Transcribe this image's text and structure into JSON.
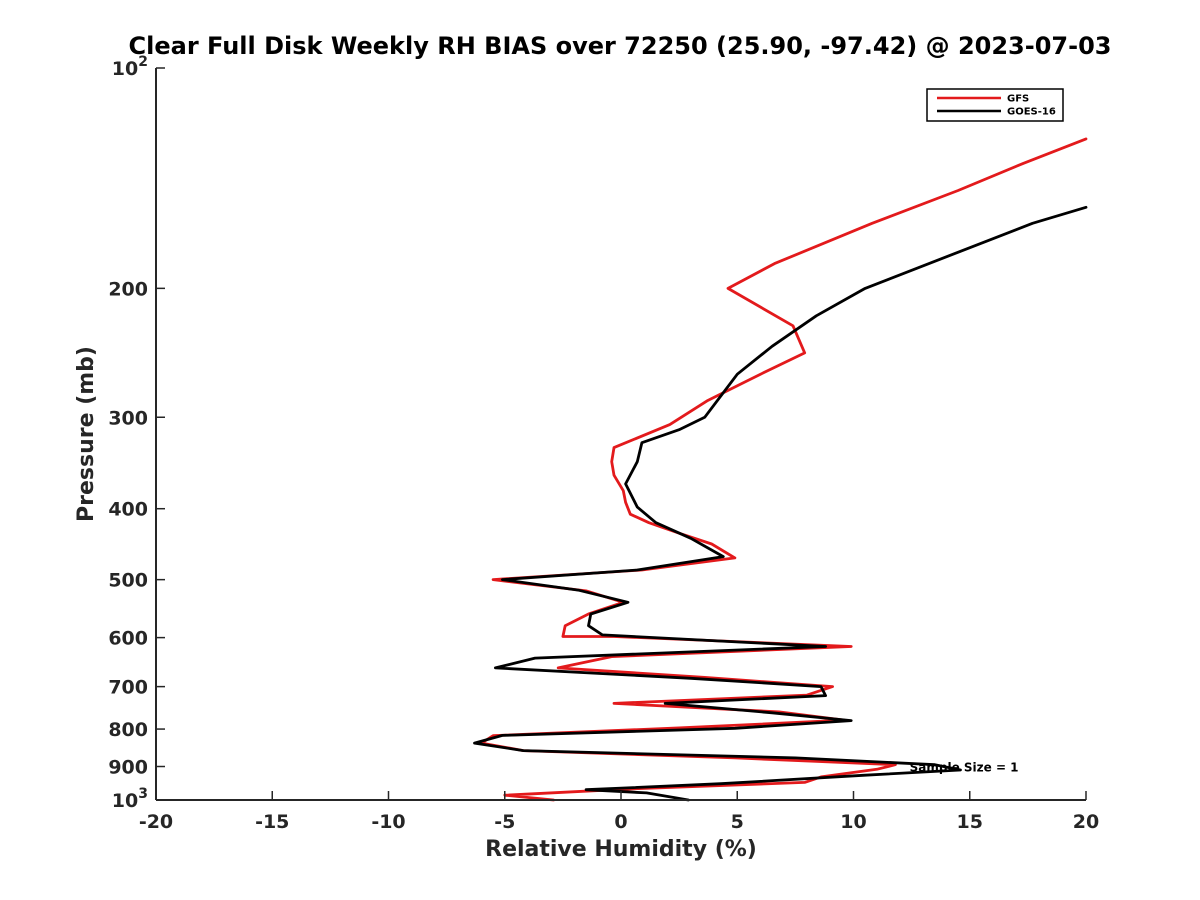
{
  "chart_data": {
    "type": "line",
    "title": "Clear Full Disk Weekly RH BIAS over 72250 (25.90, -97.42) @ 2023-07-03",
    "xlabel": "Relative Humidity (%)",
    "ylabel": "Pressure (mb)",
    "xlim": [
      -20,
      20
    ],
    "ylim": [
      1000,
      100
    ],
    "y_scale": "log",
    "y_reversed": true,
    "grid": false,
    "legend_position": "top-right",
    "x_ticks": [
      "-20",
      "-15",
      "-10",
      "-5",
      "0",
      "5",
      "10",
      "15",
      "20"
    ],
    "y_ticks": [
      {
        "value": 100,
        "base": "10",
        "exp": "2"
      },
      {
        "value": 200,
        "label": "200"
      },
      {
        "value": 300,
        "label": "300"
      },
      {
        "value": 400,
        "label": "400"
      },
      {
        "value": 500,
        "label": "500"
      },
      {
        "value": 600,
        "label": "600"
      },
      {
        "value": 700,
        "label": "700"
      },
      {
        "value": 800,
        "label": "800"
      },
      {
        "value": 900,
        "label": "900"
      },
      {
        "value": 1000,
        "base": "10",
        "exp": "3"
      }
    ],
    "series": [
      {
        "name": "GFS",
        "color": "#e31a1c",
        "points": [
          {
            "x": 20.0,
            "p": 125
          },
          {
            "x": 17.3,
            "p": 135
          },
          {
            "x": 14.5,
            "p": 147
          },
          {
            "x": 10.8,
            "p": 163
          },
          {
            "x": 6.6,
            "p": 185
          },
          {
            "x": 4.6,
            "p": 200
          },
          {
            "x": 7.4,
            "p": 225
          },
          {
            "x": 7.9,
            "p": 245
          },
          {
            "x": 6.0,
            "p": 262
          },
          {
            "x": 3.7,
            "p": 285
          },
          {
            "x": 2.1,
            "p": 307
          },
          {
            "x": -0.3,
            "p": 330
          },
          {
            "x": -0.4,
            "p": 345
          },
          {
            "x": -0.3,
            "p": 360
          },
          {
            "x": 0.1,
            "p": 378
          },
          {
            "x": 0.2,
            "p": 392
          },
          {
            "x": 0.4,
            "p": 407
          },
          {
            "x": 1.2,
            "p": 418
          },
          {
            "x": 2.5,
            "p": 432
          },
          {
            "x": 3.9,
            "p": 447
          },
          {
            "x": 4.9,
            "p": 467
          },
          {
            "x": 0.9,
            "p": 485
          },
          {
            "x": -5.5,
            "p": 500
          },
          {
            "x": -1.5,
            "p": 518
          },
          {
            "x": 0.1,
            "p": 537
          },
          {
            "x": -1.4,
            "p": 557
          },
          {
            "x": -2.4,
            "p": 578
          },
          {
            "x": -2.5,
            "p": 598
          },
          {
            "x": -0.3,
            "p": 598
          },
          {
            "x": 9.9,
            "p": 617
          },
          {
            "x": -0.4,
            "p": 637
          },
          {
            "x": -2.7,
            "p": 660
          },
          {
            "x": 3.6,
            "p": 680
          },
          {
            "x": 9.1,
            "p": 700
          },
          {
            "x": 8.0,
            "p": 719
          },
          {
            "x": -0.3,
            "p": 738
          },
          {
            "x": 6.8,
            "p": 758
          },
          {
            "x": 9.6,
            "p": 778
          },
          {
            "x": 2.5,
            "p": 797
          },
          {
            "x": -5.5,
            "p": 817
          },
          {
            "x": -6.0,
            "p": 836
          },
          {
            "x": -4.2,
            "p": 856
          },
          {
            "x": 4.9,
            "p": 876
          },
          {
            "x": 11.8,
            "p": 895
          },
          {
            "x": 11.0,
            "p": 908
          },
          {
            "x": 8.6,
            "p": 930
          },
          {
            "x": 7.9,
            "p": 946
          },
          {
            "x": 0.6,
            "p": 965
          },
          {
            "x": -5.0,
            "p": 985
          },
          {
            "x": -2.9,
            "p": 1000
          }
        ]
      },
      {
        "name": "GOES-16",
        "color": "#000000",
        "points": [
          {
            "x": 20.0,
            "p": 155
          },
          {
            "x": 17.7,
            "p": 163
          },
          {
            "x": 14.6,
            "p": 178
          },
          {
            "x": 10.5,
            "p": 200
          },
          {
            "x": 8.4,
            "p": 218
          },
          {
            "x": 6.5,
            "p": 240
          },
          {
            "x": 5.0,
            "p": 262
          },
          {
            "x": 3.6,
            "p": 300
          },
          {
            "x": 2.5,
            "p": 312
          },
          {
            "x": 0.9,
            "p": 325
          },
          {
            "x": 0.7,
            "p": 345
          },
          {
            "x": 0.2,
            "p": 370
          },
          {
            "x": 0.7,
            "p": 398
          },
          {
            "x": 1.5,
            "p": 418
          },
          {
            "x": 3.0,
            "p": 439
          },
          {
            "x": 4.4,
            "p": 465
          },
          {
            "x": 0.7,
            "p": 485
          },
          {
            "x": -5.1,
            "p": 500
          },
          {
            "x": -1.8,
            "p": 517
          },
          {
            "x": 0.3,
            "p": 537
          },
          {
            "x": -1.3,
            "p": 557
          },
          {
            "x": -1.4,
            "p": 578
          },
          {
            "x": -0.8,
            "p": 595
          },
          {
            "x": 8.8,
            "p": 617
          },
          {
            "x": -3.7,
            "p": 640
          },
          {
            "x": -5.4,
            "p": 660
          },
          {
            "x": 3.0,
            "p": 682
          },
          {
            "x": 8.6,
            "p": 700
          },
          {
            "x": 8.8,
            "p": 720
          },
          {
            "x": 1.9,
            "p": 738
          },
          {
            "x": 6.5,
            "p": 760
          },
          {
            "x": 9.9,
            "p": 779
          },
          {
            "x": 4.9,
            "p": 798
          },
          {
            "x": -5.1,
            "p": 816
          },
          {
            "x": -6.3,
            "p": 836
          },
          {
            "x": -4.2,
            "p": 856
          },
          {
            "x": 7.5,
            "p": 876
          },
          {
            "x": 13.5,
            "p": 895
          },
          {
            "x": 14.6,
            "p": 910
          },
          {
            "x": 10.5,
            "p": 925
          },
          {
            "x": 4.3,
            "p": 950
          },
          {
            "x": -1.5,
            "p": 968
          },
          {
            "x": 1.1,
            "p": 978
          },
          {
            "x": 2.9,
            "p": 1000
          }
        ]
      }
    ],
    "annotations": [
      {
        "text": "Sample Size = 1",
        "x": 12.5,
        "p": 900
      }
    ]
  }
}
